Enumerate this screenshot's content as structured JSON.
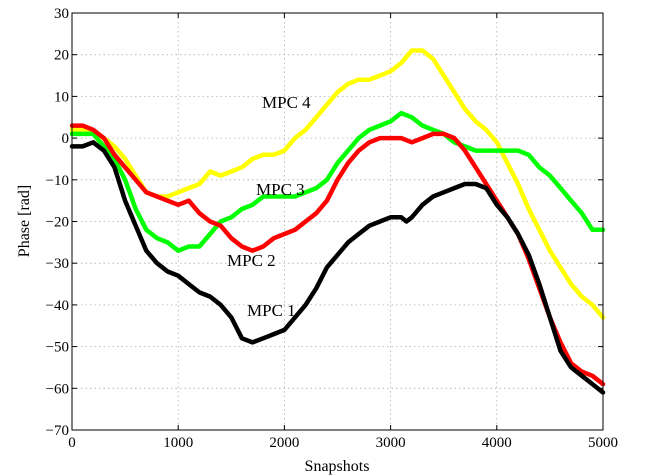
{
  "chart_data": {
    "type": "line",
    "title": "",
    "xlabel": "Snapshots",
    "ylabel": "Phase [rad]",
    "xlim": [
      0,
      5000
    ],
    "ylim": [
      -70,
      30
    ],
    "xticks": [
      0,
      1000,
      2000,
      3000,
      4000,
      5000
    ],
    "yticks": [
      30,
      20,
      10,
      0,
      -10,
      -20,
      -30,
      -40,
      -50,
      -60,
      -70
    ],
    "grid": true,
    "series": [
      {
        "name": "MPC 1",
        "color": "#000000",
        "x": [
          0,
          100,
          200,
          300,
          400,
          500,
          600,
          700,
          800,
          900,
          1000,
          1100,
          1200,
          1300,
          1400,
          1500,
          1600,
          1700,
          1800,
          1900,
          2000,
          2100,
          2200,
          2300,
          2400,
          2500,
          2600,
          2700,
          2800,
          2900,
          3000,
          3100,
          3150,
          3200,
          3300,
          3400,
          3500,
          3600,
          3700,
          3800,
          3900,
          4000,
          4100,
          4200,
          4300,
          4400,
          4500,
          4600,
          4700,
          4800,
          4900,
          5000
        ],
        "y": [
          -2,
          -2,
          -1,
          -3,
          -7,
          -15,
          -21,
          -27,
          -30,
          -32,
          -33,
          -35,
          -37,
          -38,
          -40,
          -43,
          -48,
          -49,
          -48,
          -47,
          -46,
          -43,
          -40,
          -36,
          -31,
          -28,
          -25,
          -23,
          -21,
          -20,
          -19,
          -19,
          -20,
          -19,
          -16,
          -14,
          -13,
          -12,
          -11,
          -11,
          -12,
          -16,
          -19,
          -23,
          -28,
          -35,
          -43,
          -51,
          -55,
          -57,
          -59,
          -61
        ]
      },
      {
        "name": "MPC 2",
        "color": "#ff0000",
        "x": [
          0,
          100,
          200,
          300,
          400,
          500,
          600,
          700,
          800,
          900,
          1000,
          1100,
          1200,
          1300,
          1400,
          1500,
          1600,
          1700,
          1800,
          1900,
          2000,
          2100,
          2200,
          2300,
          2400,
          2500,
          2600,
          2700,
          2800,
          2900,
          3000,
          3100,
          3200,
          3300,
          3400,
          3500,
          3600,
          3700,
          3800,
          3900,
          4000,
          4100,
          4200,
          4300,
          4400,
          4500,
          4600,
          4700,
          4800,
          4900,
          5000
        ],
        "y": [
          3,
          3,
          2,
          0,
          -4,
          -7,
          -10,
          -13,
          -14,
          -15,
          -16,
          -15,
          -18,
          -20,
          -21,
          -24,
          -26,
          -27,
          -26,
          -24,
          -23,
          -22,
          -20,
          -18,
          -15,
          -10,
          -6,
          -3,
          -1,
          0,
          0,
          0,
          -1,
          0,
          1,
          1,
          0,
          -3,
          -7,
          -11,
          -15,
          -19,
          -23,
          -29,
          -36,
          -43,
          -49,
          -54,
          -56,
          -57,
          -59
        ]
      },
      {
        "name": "MPC 3",
        "color": "#00ff00",
        "x": [
          0,
          100,
          200,
          300,
          400,
          500,
          600,
          700,
          800,
          900,
          1000,
          1100,
          1200,
          1300,
          1400,
          1500,
          1600,
          1700,
          1800,
          1900,
          2000,
          2100,
          2200,
          2300,
          2400,
          2500,
          2600,
          2700,
          2800,
          2900,
          3000,
          3100,
          3200,
          3300,
          3400,
          3500,
          3600,
          3700,
          3800,
          3900,
          4000,
          4100,
          4200,
          4300,
          4400,
          4500,
          4600,
          4700,
          4800,
          4900,
          5000
        ],
        "y": [
          1,
          1,
          1,
          -2,
          -5,
          -10,
          -17,
          -22,
          -24,
          -25,
          -27,
          -26,
          -26,
          -23,
          -20,
          -19,
          -17,
          -16,
          -14,
          -14,
          -14,
          -14,
          -13,
          -12,
          -10,
          -6,
          -3,
          0,
          2,
          3,
          4,
          6,
          5,
          3,
          2,
          1,
          -1,
          -2,
          -3,
          -3,
          -3,
          -3,
          -3,
          -4,
          -7,
          -9,
          -12,
          -15,
          -18,
          -22,
          -22
        ]
      },
      {
        "name": "MPC 4",
        "color": "#ffff00",
        "x": [
          0,
          100,
          200,
          300,
          400,
          500,
          600,
          700,
          800,
          900,
          1000,
          1100,
          1200,
          1300,
          1400,
          1500,
          1600,
          1700,
          1800,
          1900,
          2000,
          2100,
          2200,
          2300,
          2400,
          2500,
          2600,
          2700,
          2800,
          2900,
          3000,
          3100,
          3200,
          3300,
          3400,
          3500,
          3600,
          3700,
          3800,
          3900,
          4000,
          4100,
          4200,
          4300,
          4400,
          4500,
          4600,
          4700,
          4800,
          4900,
          5000
        ],
        "y": [
          2,
          2,
          1,
          0,
          -2,
          -5,
          -9,
          -13,
          -14,
          -14,
          -13,
          -12,
          -11,
          -8,
          -9,
          -8,
          -7,
          -5,
          -4,
          -4,
          -3,
          0,
          2,
          5,
          8,
          11,
          13,
          14,
          14,
          15,
          16,
          18,
          21,
          21,
          19,
          15,
          11,
          7,
          4,
          2,
          -1,
          -6,
          -11,
          -17,
          -22,
          -27,
          -31,
          -35,
          -38,
          -40,
          -43
        ]
      }
    ],
    "annotations": [
      "MPC 4",
      "MPC 3",
      "MPC 2",
      "MPC 1"
    ]
  }
}
